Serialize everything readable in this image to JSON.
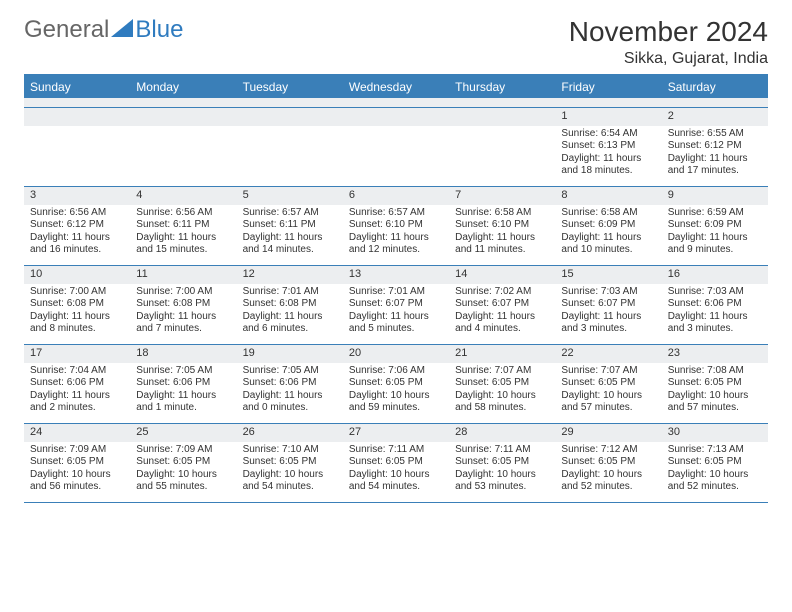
{
  "logo": {
    "part1": "General",
    "part2": "Blue"
  },
  "title": "November 2024",
  "location": "Sikka, Gujarat, India",
  "day_labels": [
    "Sunday",
    "Monday",
    "Tuesday",
    "Wednesday",
    "Thursday",
    "Friday",
    "Saturday"
  ],
  "colors": {
    "header_blue": "#3a7fb8",
    "grey_band": "#eceef0",
    "text": "#333333",
    "logo_blue": "#2f7bbf"
  },
  "weeks": [
    [
      {
        "n": "",
        "sr": "",
        "ss": "",
        "dl": ""
      },
      {
        "n": "",
        "sr": "",
        "ss": "",
        "dl": ""
      },
      {
        "n": "",
        "sr": "",
        "ss": "",
        "dl": ""
      },
      {
        "n": "",
        "sr": "",
        "ss": "",
        "dl": ""
      },
      {
        "n": "",
        "sr": "",
        "ss": "",
        "dl": ""
      },
      {
        "n": "1",
        "sr": "Sunrise: 6:54 AM",
        "ss": "Sunset: 6:13 PM",
        "dl": "Daylight: 11 hours and 18 minutes."
      },
      {
        "n": "2",
        "sr": "Sunrise: 6:55 AM",
        "ss": "Sunset: 6:12 PM",
        "dl": "Daylight: 11 hours and 17 minutes."
      }
    ],
    [
      {
        "n": "3",
        "sr": "Sunrise: 6:56 AM",
        "ss": "Sunset: 6:12 PM",
        "dl": "Daylight: 11 hours and 16 minutes."
      },
      {
        "n": "4",
        "sr": "Sunrise: 6:56 AM",
        "ss": "Sunset: 6:11 PM",
        "dl": "Daylight: 11 hours and 15 minutes."
      },
      {
        "n": "5",
        "sr": "Sunrise: 6:57 AM",
        "ss": "Sunset: 6:11 PM",
        "dl": "Daylight: 11 hours and 14 minutes."
      },
      {
        "n": "6",
        "sr": "Sunrise: 6:57 AM",
        "ss": "Sunset: 6:10 PM",
        "dl": "Daylight: 11 hours and 12 minutes."
      },
      {
        "n": "7",
        "sr": "Sunrise: 6:58 AM",
        "ss": "Sunset: 6:10 PM",
        "dl": "Daylight: 11 hours and 11 minutes."
      },
      {
        "n": "8",
        "sr": "Sunrise: 6:58 AM",
        "ss": "Sunset: 6:09 PM",
        "dl": "Daylight: 11 hours and 10 minutes."
      },
      {
        "n": "9",
        "sr": "Sunrise: 6:59 AM",
        "ss": "Sunset: 6:09 PM",
        "dl": "Daylight: 11 hours and 9 minutes."
      }
    ],
    [
      {
        "n": "10",
        "sr": "Sunrise: 7:00 AM",
        "ss": "Sunset: 6:08 PM",
        "dl": "Daylight: 11 hours and 8 minutes."
      },
      {
        "n": "11",
        "sr": "Sunrise: 7:00 AM",
        "ss": "Sunset: 6:08 PM",
        "dl": "Daylight: 11 hours and 7 minutes."
      },
      {
        "n": "12",
        "sr": "Sunrise: 7:01 AM",
        "ss": "Sunset: 6:08 PM",
        "dl": "Daylight: 11 hours and 6 minutes."
      },
      {
        "n": "13",
        "sr": "Sunrise: 7:01 AM",
        "ss": "Sunset: 6:07 PM",
        "dl": "Daylight: 11 hours and 5 minutes."
      },
      {
        "n": "14",
        "sr": "Sunrise: 7:02 AM",
        "ss": "Sunset: 6:07 PM",
        "dl": "Daylight: 11 hours and 4 minutes."
      },
      {
        "n": "15",
        "sr": "Sunrise: 7:03 AM",
        "ss": "Sunset: 6:07 PM",
        "dl": "Daylight: 11 hours and 3 minutes."
      },
      {
        "n": "16",
        "sr": "Sunrise: 7:03 AM",
        "ss": "Sunset: 6:06 PM",
        "dl": "Daylight: 11 hours and 3 minutes."
      }
    ],
    [
      {
        "n": "17",
        "sr": "Sunrise: 7:04 AM",
        "ss": "Sunset: 6:06 PM",
        "dl": "Daylight: 11 hours and 2 minutes."
      },
      {
        "n": "18",
        "sr": "Sunrise: 7:05 AM",
        "ss": "Sunset: 6:06 PM",
        "dl": "Daylight: 11 hours and 1 minute."
      },
      {
        "n": "19",
        "sr": "Sunrise: 7:05 AM",
        "ss": "Sunset: 6:06 PM",
        "dl": "Daylight: 11 hours and 0 minutes."
      },
      {
        "n": "20",
        "sr": "Sunrise: 7:06 AM",
        "ss": "Sunset: 6:05 PM",
        "dl": "Daylight: 10 hours and 59 minutes."
      },
      {
        "n": "21",
        "sr": "Sunrise: 7:07 AM",
        "ss": "Sunset: 6:05 PM",
        "dl": "Daylight: 10 hours and 58 minutes."
      },
      {
        "n": "22",
        "sr": "Sunrise: 7:07 AM",
        "ss": "Sunset: 6:05 PM",
        "dl": "Daylight: 10 hours and 57 minutes."
      },
      {
        "n": "23",
        "sr": "Sunrise: 7:08 AM",
        "ss": "Sunset: 6:05 PM",
        "dl": "Daylight: 10 hours and 57 minutes."
      }
    ],
    [
      {
        "n": "24",
        "sr": "Sunrise: 7:09 AM",
        "ss": "Sunset: 6:05 PM",
        "dl": "Daylight: 10 hours and 56 minutes."
      },
      {
        "n": "25",
        "sr": "Sunrise: 7:09 AM",
        "ss": "Sunset: 6:05 PM",
        "dl": "Daylight: 10 hours and 55 minutes."
      },
      {
        "n": "26",
        "sr": "Sunrise: 7:10 AM",
        "ss": "Sunset: 6:05 PM",
        "dl": "Daylight: 10 hours and 54 minutes."
      },
      {
        "n": "27",
        "sr": "Sunrise: 7:11 AM",
        "ss": "Sunset: 6:05 PM",
        "dl": "Daylight: 10 hours and 54 minutes."
      },
      {
        "n": "28",
        "sr": "Sunrise: 7:11 AM",
        "ss": "Sunset: 6:05 PM",
        "dl": "Daylight: 10 hours and 53 minutes."
      },
      {
        "n": "29",
        "sr": "Sunrise: 7:12 AM",
        "ss": "Sunset: 6:05 PM",
        "dl": "Daylight: 10 hours and 52 minutes."
      },
      {
        "n": "30",
        "sr": "Sunrise: 7:13 AM",
        "ss": "Sunset: 6:05 PM",
        "dl": "Daylight: 10 hours and 52 minutes."
      }
    ]
  ]
}
